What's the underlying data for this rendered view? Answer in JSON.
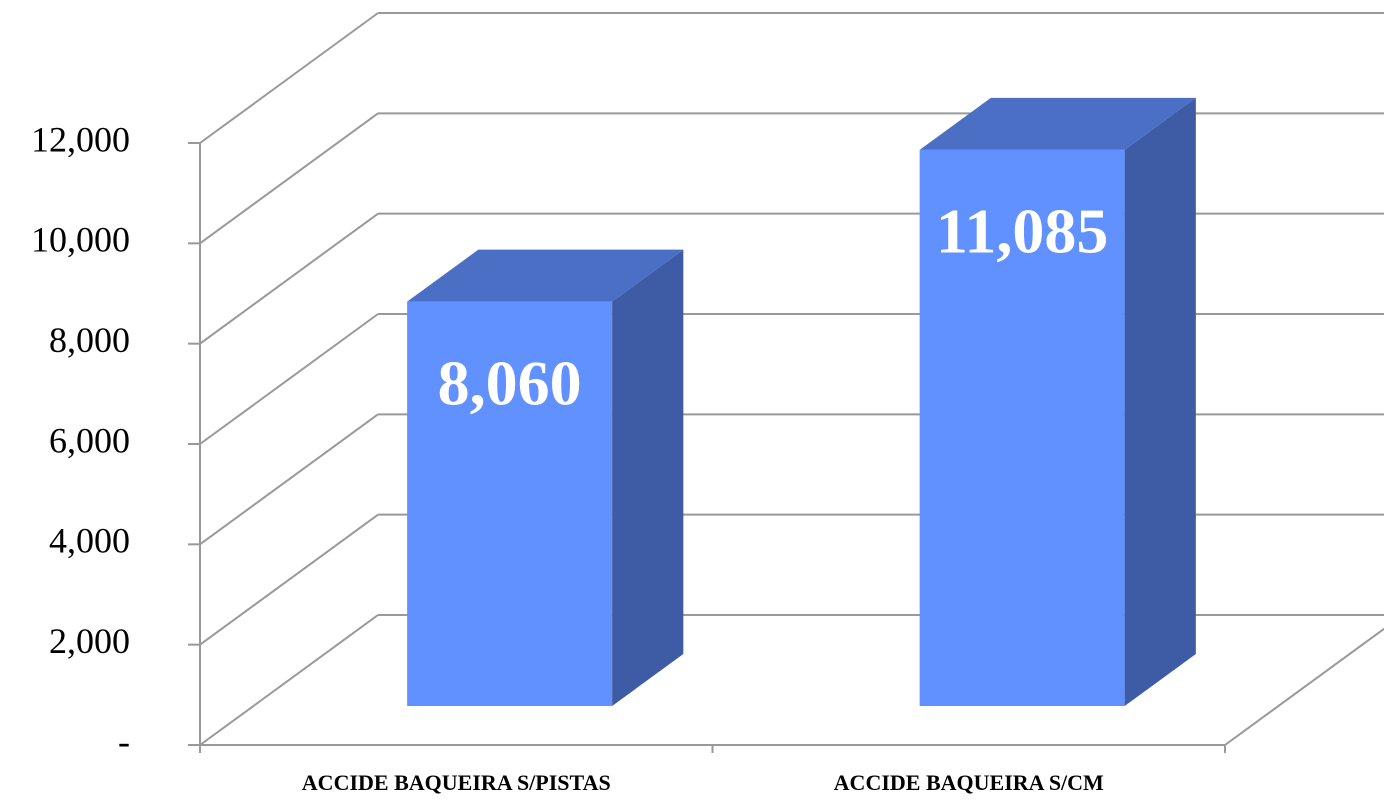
{
  "chart_data": {
    "type": "bar3d",
    "categories": [
      "ACCIDE BAQUEIRA S/PISTAS",
      "ACCIDE BAQUEIRA S/CM"
    ],
    "values": [
      8060,
      11085
    ],
    "value_labels": [
      "8,060",
      "11,085"
    ],
    "colors": {
      "front": "#6190ff",
      "top": "#4a6fc4",
      "side": "#3e5ba6"
    },
    "ylim": [
      0,
      12000
    ],
    "yticks": [
      {
        "value": 0,
        "label": "-"
      },
      {
        "value": 2000,
        "label": "2,000"
      },
      {
        "value": 4000,
        "label": "4,000"
      },
      {
        "value": 6000,
        "label": "6,000"
      },
      {
        "value": 8000,
        "label": "8,000"
      },
      {
        "value": 10000,
        "label": "10,000"
      },
      {
        "value": 12000,
        "label": "12,000"
      }
    ],
    "grid": true
  }
}
